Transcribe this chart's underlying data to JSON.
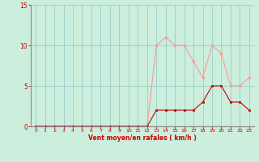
{
  "hours": [
    0,
    1,
    2,
    3,
    4,
    5,
    6,
    7,
    8,
    9,
    10,
    11,
    12,
    13,
    14,
    15,
    16,
    17,
    18,
    19,
    20,
    21,
    22,
    23
  ],
  "mean_wind": [
    0,
    0,
    0,
    0,
    0,
    0,
    0,
    0,
    0,
    0,
    0,
    0,
    0,
    2,
    2,
    2,
    2,
    2,
    3,
    5,
    5,
    3,
    3,
    2
  ],
  "gusts": [
    0,
    0,
    0,
    0,
    0,
    0,
    0,
    0,
    0,
    0,
    0,
    0,
    0,
    10,
    11,
    10,
    10,
    8,
    6,
    10,
    9,
    5,
    5,
    6
  ],
  "mean_color": "#cc0000",
  "gust_color": "#ff9999",
  "bg_color": "#cceedd",
  "grid_color": "#99cccc",
  "axis_color": "#cc0000",
  "xlabel": "Vent moyen/en rafales ( km/h )",
  "ylim": [
    0,
    15
  ],
  "yticks": [
    0,
    5,
    10,
    15
  ],
  "title": ""
}
